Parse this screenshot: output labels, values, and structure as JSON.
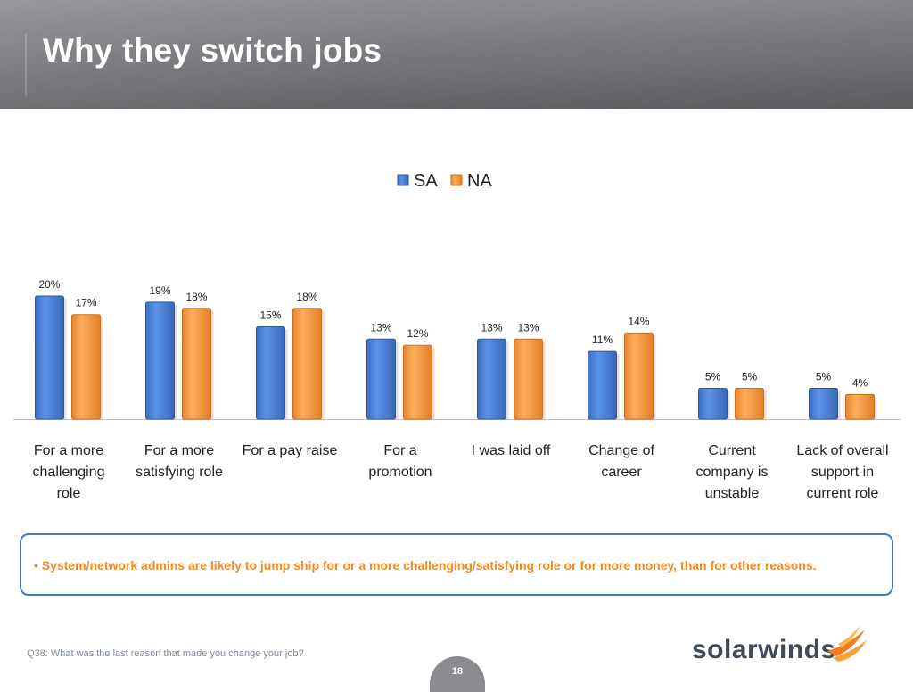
{
  "slide": {
    "title": "Why they switch jobs",
    "note": "• System/network admins are likely to jump ship for or a more challenging/satisfying role or for more money, than for other reasons.",
    "footnote": "Q38: What was the last reason that made you change your job?",
    "page_number": "18",
    "logo_text": "solarwinds"
  },
  "chart_data": {
    "type": "bar",
    "title": "",
    "xlabel": "",
    "ylabel": "",
    "ylim": [
      0,
      22
    ],
    "grid": false,
    "legend_position": "top-center",
    "categories": [
      "For a more challenging role",
      "For a more satisfying role",
      "For a pay raise",
      "For a promotion",
      "I was laid off",
      "Change of career",
      "Current company is unstable",
      "Lack of overall support in current role"
    ],
    "category_lines": [
      [
        "For a more",
        "challenging",
        "role"
      ],
      [
        "For a more",
        "satisfying role"
      ],
      [
        "For a pay raise"
      ],
      [
        "For a",
        "promotion"
      ],
      [
        "I was laid off"
      ],
      [
        "Change of",
        "career"
      ],
      [
        "Current",
        "company is",
        "unstable"
      ],
      [
        "Lack of overall",
        "support in",
        "current role"
      ]
    ],
    "series": [
      {
        "name": "SA",
        "color": "#4a7fd6",
        "values": [
          20,
          19,
          15,
          13,
          13,
          11,
          5,
          5
        ],
        "labels": [
          "20%",
          "19%",
          "15%",
          "13%",
          "13%",
          "11%",
          "5%",
          "5%"
        ]
      },
      {
        "name": "NA",
        "color": "#f79a3e",
        "values": [
          17,
          18,
          18,
          12,
          13,
          14,
          5,
          4
        ],
        "labels": [
          "17%",
          "18%",
          "18%",
          "12%",
          "13%",
          "14%",
          "5%",
          "4%"
        ]
      }
    ]
  }
}
